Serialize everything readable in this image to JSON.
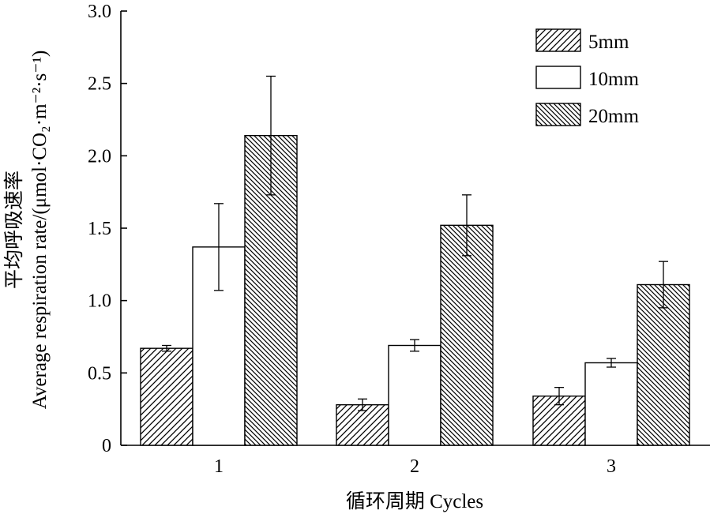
{
  "chart_data": {
    "type": "bar",
    "categories": [
      "1",
      "2",
      "3"
    ],
    "series": [
      {
        "name": "5mm",
        "pattern": "hatch-fwd",
        "values": [
          0.67,
          0.28,
          0.34
        ],
        "errors": [
          0.02,
          0.04,
          0.06
        ]
      },
      {
        "name": "10mm",
        "pattern": "none",
        "values": [
          1.37,
          0.69,
          0.57
        ],
        "errors": [
          0.3,
          0.04,
          0.03
        ]
      },
      {
        "name": "20mm",
        "pattern": "hatch-back",
        "values": [
          2.14,
          1.52,
          1.11
        ],
        "errors": [
          0.41,
          0.21,
          0.16
        ]
      }
    ],
    "ylim": [
      0,
      3.0
    ],
    "yticks": [
      "0",
      "0.5",
      "1.0",
      "1.5",
      "2.0",
      "2.5",
      "3.0"
    ],
    "xlabel": "循环周期 Cycles",
    "ylabel_cn": "平均呼吸速率",
    "ylabel_en": "Average respiration rate/(μmol·CO₂·m⁻²·s⁻¹)",
    "legend_position": "top-right",
    "grid": false,
    "colors": {
      "line": "#000000",
      "background": "#ffffff"
    }
  }
}
